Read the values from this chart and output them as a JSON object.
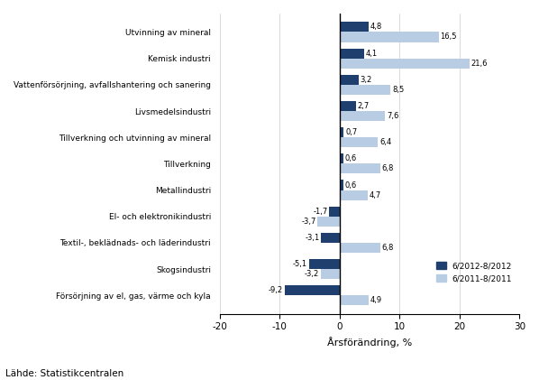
{
  "categories": [
    "Försörjning av el, gas, värme och kyla",
    "Skogsindustri",
    "Textil-, beklädnads- och läderindustri",
    "El- och elektronikindustri",
    "Metallindustri",
    "Tillverkning",
    "Tillverkning och utvinning av mineral",
    "Livsmedelsindustri",
    "Vattenförsörjning, avfallshantering och sanering",
    "Kemisk industri",
    "Utvinning av mineral"
  ],
  "values_2012": [
    -9.2,
    -5.1,
    -3.1,
    -1.7,
    0.6,
    0.6,
    0.7,
    2.7,
    3.2,
    4.1,
    4.8
  ],
  "values_2011": [
    4.9,
    -3.2,
    6.8,
    -3.7,
    4.7,
    6.8,
    6.4,
    7.6,
    8.5,
    21.6,
    16.5
  ],
  "color_2012": "#1F3F6E",
  "color_2011": "#B8CCE4",
  "xlim": [
    -20,
    30
  ],
  "xticks": [
    -20,
    -10,
    0,
    10,
    20,
    30
  ],
  "xlabel": "Årsförändring, %",
  "legend_2012": "6/2012-8/2012",
  "legend_2011": "6/2011-8/2011",
  "source": "Lähde: Statistikcentralen",
  "bar_height": 0.38
}
